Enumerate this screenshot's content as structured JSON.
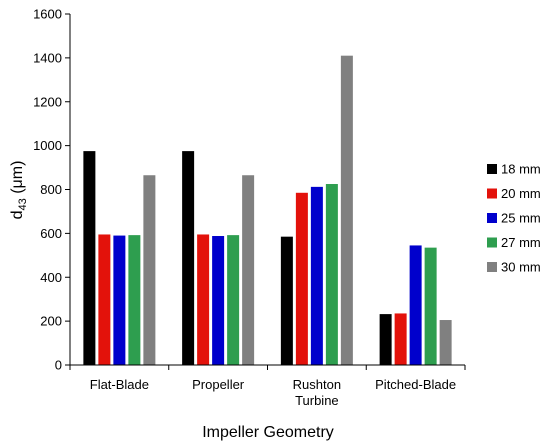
{
  "chart_data": {
    "type": "bar",
    "categories": [
      [
        "Flat-Blade"
      ],
      [
        "Propeller"
      ],
      [
        "Rushton",
        "Turbine"
      ],
      [
        "Pitched-Blade"
      ]
    ],
    "series": [
      {
        "name": "18 mm",
        "color": "#000000",
        "values": [
          975,
          975,
          585,
          232
        ]
      },
      {
        "name": "20 mm",
        "color": "#e3120b",
        "values": [
          595,
          595,
          785,
          235
        ]
      },
      {
        "name": "25 mm",
        "color": "#0000cc",
        "values": [
          590,
          588,
          812,
          545
        ]
      },
      {
        "name": "27 mm",
        "color": "#2e9e4f",
        "values": [
          592,
          592,
          825,
          535
        ]
      },
      {
        "name": "30 mm",
        "color": "#808080",
        "values": [
          865,
          865,
          1410,
          205
        ]
      }
    ],
    "ylim": [
      0,
      1600
    ],
    "yticks": [
      "0",
      "200",
      "400",
      "600",
      "800",
      "1000",
      "1200",
      "1400",
      "1600"
    ],
    "xlabel": "Impeller Geometry",
    "ylabel_main": "d",
    "ylabel_sub": "43",
    "ylabel_unit": " (μm)",
    "legend_position": "right",
    "grid": false
  }
}
